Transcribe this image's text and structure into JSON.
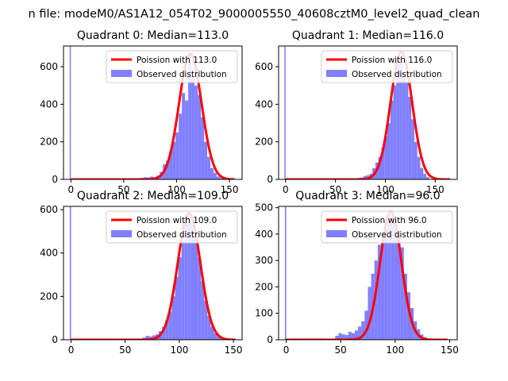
{
  "figure": {
    "suptitle": "n file: modeM0/AS1A12_054T02_9000005550_40608cztM0_level2_quad_clean"
  },
  "chart_data": [
    {
      "type": "histogram",
      "title": "Quadrant 0: Median=113.0",
      "xlim": [
        -7,
        162
      ],
      "ylim": [
        0,
        710
      ],
      "xticks": [
        0,
        50,
        100,
        150
      ],
      "yticks": [
        0,
        200,
        400,
        600
      ],
      "legend": {
        "placement": "top-right",
        "entries": [
          "Poission with 113.0",
          "Observed distribution"
        ]
      },
      "spike": {
        "x": 0,
        "value": 710
      },
      "bin_width": 3,
      "bins": [
        {
          "x": 63,
          "value": 5
        },
        {
          "x": 66,
          "value": 8
        },
        {
          "x": 69,
          "value": 12
        },
        {
          "x": 72,
          "value": 10
        },
        {
          "x": 75,
          "value": 15
        },
        {
          "x": 78,
          "value": 12
        },
        {
          "x": 81,
          "value": 20
        },
        {
          "x": 84,
          "value": 40
        },
        {
          "x": 87,
          "value": 80
        },
        {
          "x": 90,
          "value": 100
        },
        {
          "x": 93,
          "value": 150
        },
        {
          "x": 96,
          "value": 200
        },
        {
          "x": 99,
          "value": 250
        },
        {
          "x": 102,
          "value": 350
        },
        {
          "x": 105,
          "value": 460
        },
        {
          "x": 108,
          "value": 420
        },
        {
          "x": 111,
          "value": 620
        },
        {
          "x": 114,
          "value": 550
        },
        {
          "x": 117,
          "value": 500
        },
        {
          "x": 120,
          "value": 450
        },
        {
          "x": 123,
          "value": 330
        },
        {
          "x": 126,
          "value": 200
        },
        {
          "x": 129,
          "value": 120
        },
        {
          "x": 132,
          "value": 60
        },
        {
          "x": 135,
          "value": 35
        },
        {
          "x": 138,
          "value": 15
        },
        {
          "x": 141,
          "value": 8
        }
      ],
      "poisson": {
        "name": "Poission with 113.0",
        "mean": 113.0,
        "peak": 670,
        "x_range": [
          0,
          155
        ]
      },
      "colors": {
        "bars": "#8080ff",
        "spike": "#8080ff",
        "line": "#ff0000"
      }
    },
    {
      "type": "histogram",
      "title": "Quadrant 1: Median=116.0",
      "xlim": [
        -7,
        172
      ],
      "ylim": [
        0,
        710
      ],
      "xticks": [
        0,
        50,
        100,
        150
      ],
      "yticks": [
        0,
        200,
        400,
        600
      ],
      "legend": {
        "placement": "top-right",
        "entries": [
          "Poission with 116.0",
          "Observed distribution"
        ]
      },
      "spike": {
        "x": 0,
        "value": 710
      },
      "bin_width": 3,
      "bins": [
        {
          "x": 72,
          "value": 8
        },
        {
          "x": 75,
          "value": 10
        },
        {
          "x": 78,
          "value": 18
        },
        {
          "x": 81,
          "value": 22
        },
        {
          "x": 84,
          "value": 30
        },
        {
          "x": 87,
          "value": 60
        },
        {
          "x": 90,
          "value": 90
        },
        {
          "x": 93,
          "value": 120
        },
        {
          "x": 96,
          "value": 170
        },
        {
          "x": 99,
          "value": 230
        },
        {
          "x": 102,
          "value": 300
        },
        {
          "x": 105,
          "value": 420
        },
        {
          "x": 108,
          "value": 500
        },
        {
          "x": 111,
          "value": 610
        },
        {
          "x": 114,
          "value": 640
        },
        {
          "x": 117,
          "value": 560
        },
        {
          "x": 120,
          "value": 520
        },
        {
          "x": 123,
          "value": 440
        },
        {
          "x": 126,
          "value": 320
        },
        {
          "x": 129,
          "value": 200
        },
        {
          "x": 132,
          "value": 120
        },
        {
          "x": 135,
          "value": 60
        },
        {
          "x": 138,
          "value": 30
        },
        {
          "x": 141,
          "value": 12
        }
      ],
      "poisson": {
        "name": "Poission with 116.0",
        "mean": 116.0,
        "peak": 680,
        "x_range": [
          0,
          165
        ]
      },
      "colors": {
        "bars": "#8080ff",
        "spike": "#8080ff",
        "line": "#ff0000"
      }
    },
    {
      "type": "histogram",
      "title": "Quadrant 2: Median=109.0",
      "xlim": [
        -7,
        158
      ],
      "ylim": [
        0,
        615
      ],
      "xticks": [
        0,
        50,
        100,
        150
      ],
      "yticks": [
        0,
        200,
        400,
        600
      ],
      "legend": {
        "placement": "top-right",
        "entries": [
          "Poission with 109.0",
          "Observed distribution"
        ]
      },
      "spike": {
        "x": 0,
        "value": 615
      },
      "bin_width": 3,
      "bins": [
        {
          "x": 63,
          "value": 5
        },
        {
          "x": 66,
          "value": 10
        },
        {
          "x": 69,
          "value": 18
        },
        {
          "x": 72,
          "value": 15
        },
        {
          "x": 75,
          "value": 20
        },
        {
          "x": 78,
          "value": 25
        },
        {
          "x": 81,
          "value": 40
        },
        {
          "x": 84,
          "value": 60
        },
        {
          "x": 87,
          "value": 90
        },
        {
          "x": 90,
          "value": 130
        },
        {
          "x": 93,
          "value": 200
        },
        {
          "x": 96,
          "value": 290
        },
        {
          "x": 99,
          "value": 380
        },
        {
          "x": 102,
          "value": 460
        },
        {
          "x": 105,
          "value": 560
        },
        {
          "x": 108,
          "value": 580
        },
        {
          "x": 111,
          "value": 540
        },
        {
          "x": 114,
          "value": 470
        },
        {
          "x": 117,
          "value": 380
        },
        {
          "x": 120,
          "value": 270
        },
        {
          "x": 123,
          "value": 180
        },
        {
          "x": 126,
          "value": 110
        },
        {
          "x": 129,
          "value": 60
        },
        {
          "x": 132,
          "value": 30
        },
        {
          "x": 135,
          "value": 15
        },
        {
          "x": 138,
          "value": 6
        }
      ],
      "poisson": {
        "name": "Poission with 109.0",
        "mean": 109.0,
        "peak": 585,
        "x_range": [
          0,
          152
        ]
      },
      "colors": {
        "bars": "#8080ff",
        "spike": "#8080ff",
        "line": "#ff0000"
      }
    },
    {
      "type": "histogram",
      "title": "Quadrant 3: Median=96.0",
      "xlim": [
        -7,
        157
      ],
      "ylim": [
        0,
        505
      ],
      "xticks": [
        0,
        50,
        100,
        150
      ],
      "yticks": [
        0,
        100,
        200,
        300,
        400,
        500
      ],
      "legend": {
        "placement": "top-right",
        "entries": [
          "Poission with 96.0",
          "Observed distribution"
        ]
      },
      "spike": {
        "x": 0,
        "value": 505
      },
      "bin_width": 3,
      "bins": [
        {
          "x": 6,
          "value": 5
        },
        {
          "x": 15,
          "value": 5
        },
        {
          "x": 30,
          "value": 5
        },
        {
          "x": 45,
          "value": 15
        },
        {
          "x": 48,
          "value": 25
        },
        {
          "x": 51,
          "value": 20
        },
        {
          "x": 54,
          "value": 18
        },
        {
          "x": 57,
          "value": 30
        },
        {
          "x": 60,
          "value": 25
        },
        {
          "x": 63,
          "value": 35
        },
        {
          "x": 66,
          "value": 50
        },
        {
          "x": 69,
          "value": 70
        },
        {
          "x": 72,
          "value": 110
        },
        {
          "x": 75,
          "value": 200
        },
        {
          "x": 78,
          "value": 250
        },
        {
          "x": 81,
          "value": 300
        },
        {
          "x": 84,
          "value": 360
        },
        {
          "x": 87,
          "value": 380
        },
        {
          "x": 90,
          "value": 420
        },
        {
          "x": 93,
          "value": 460
        },
        {
          "x": 96,
          "value": 470
        },
        {
          "x": 99,
          "value": 440
        },
        {
          "x": 102,
          "value": 400
        },
        {
          "x": 105,
          "value": 350
        },
        {
          "x": 108,
          "value": 250
        },
        {
          "x": 111,
          "value": 180
        },
        {
          "x": 114,
          "value": 120
        },
        {
          "x": 117,
          "value": 70
        },
        {
          "x": 120,
          "value": 40
        },
        {
          "x": 123,
          "value": 20
        },
        {
          "x": 126,
          "value": 10
        }
      ],
      "poisson": {
        "name": "Poission with 96.0",
        "mean": 96.0,
        "peak": 485,
        "x_range": [
          0,
          148
        ]
      },
      "colors": {
        "bars": "#8080ff",
        "spike": "#8080ff",
        "line": "#ff0000"
      }
    }
  ]
}
